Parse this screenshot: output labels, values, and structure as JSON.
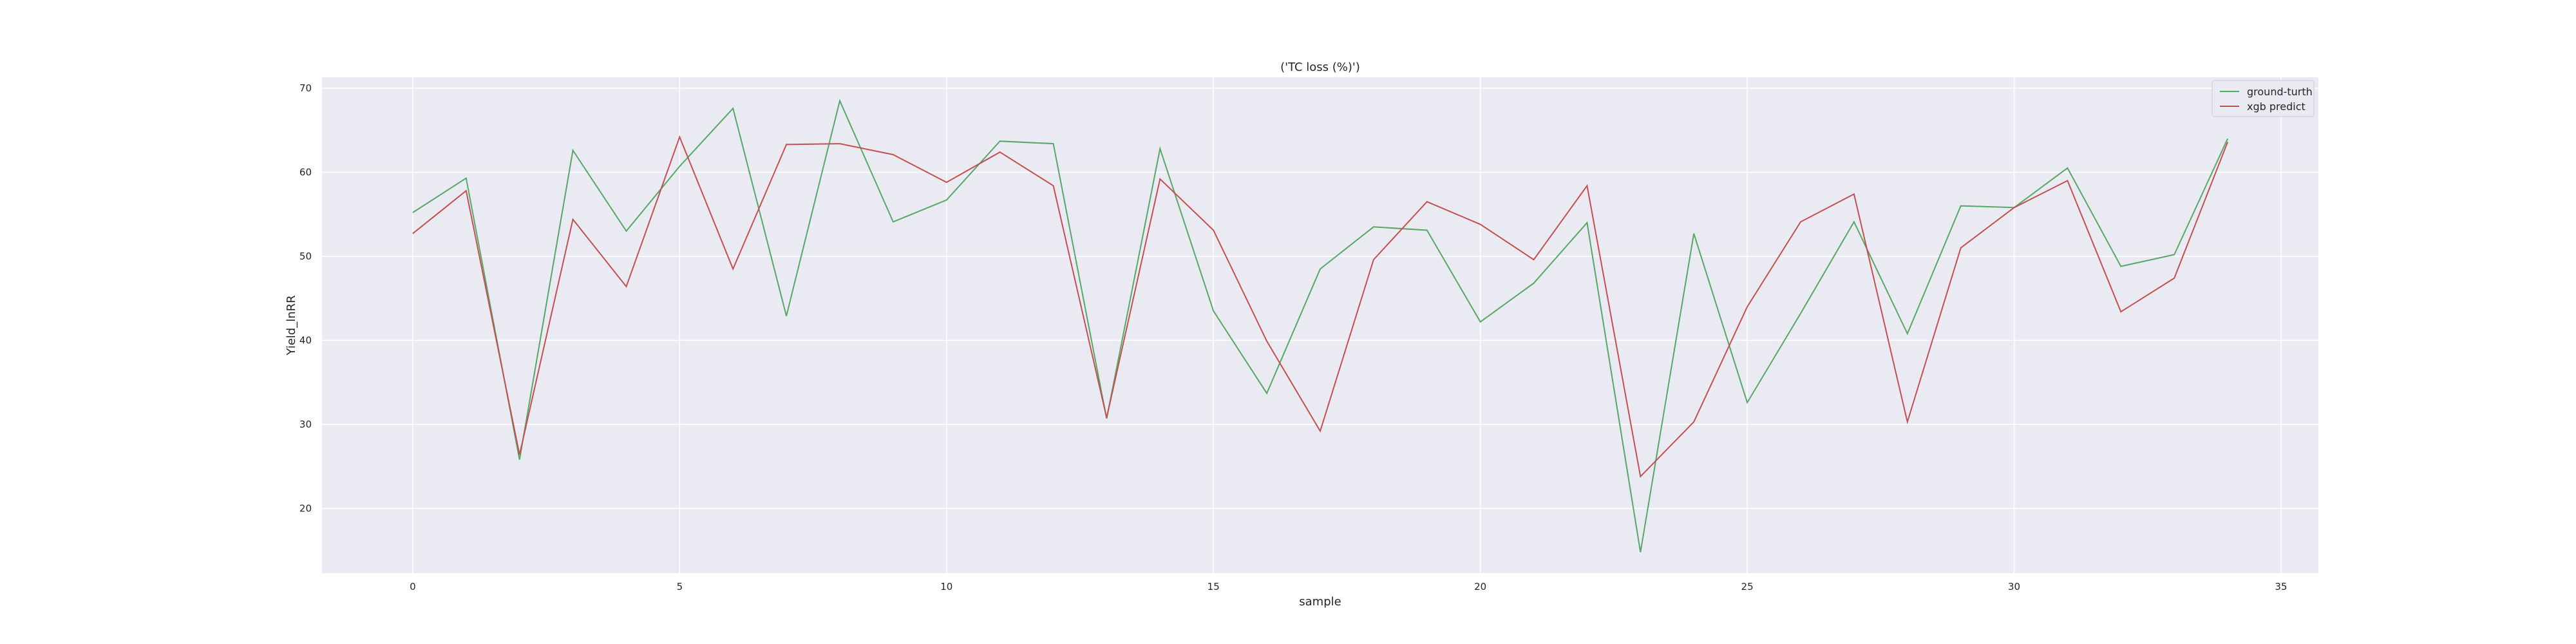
{
  "chart_data": {
    "type": "line",
    "title": "('TC loss (%)')",
    "xlabel": "sample",
    "ylabel": "Yield_lnRR",
    "xlim": [
      -1.7,
      35.7
    ],
    "ylim": [
      12.3,
      71.3
    ],
    "xticks": [
      0,
      5,
      10,
      15,
      20,
      25,
      30,
      35
    ],
    "yticks": [
      20,
      30,
      40,
      50,
      60,
      70
    ],
    "grid": true,
    "legend_position": "top-right",
    "x": [
      0,
      1,
      2,
      3,
      4,
      5,
      6,
      7,
      8,
      9,
      10,
      11,
      12,
      13,
      14,
      15,
      16,
      17,
      18,
      19,
      20,
      21,
      22,
      23,
      24,
      25,
      26,
      27,
      28,
      29,
      30,
      31,
      32,
      33,
      34
    ],
    "series": [
      {
        "name": "ground-turth",
        "color": "#55a868",
        "values": [
          55.2,
          59.3,
          25.8,
          62.6,
          53.0,
          60.7,
          67.6,
          42.9,
          68.5,
          54.1,
          56.7,
          63.7,
          63.4,
          30.7,
          62.8,
          43.5,
          33.7,
          48.5,
          53.5,
          53.1,
          42.2,
          46.8,
          54.0,
          14.8,
          52.7,
          32.6,
          43.2,
          54.1,
          40.8,
          56.0,
          55.8,
          60.5,
          48.8,
          50.2,
          64.0
        ]
      },
      {
        "name": "xgb predict",
        "color": "#c44e52",
        "values": [
          52.7,
          57.8,
          26.4,
          54.4,
          46.4,
          64.2,
          48.5,
          63.3,
          63.4,
          62.1,
          58.8,
          62.4,
          58.4,
          30.8,
          59.2,
          53.1,
          39.9,
          29.2,
          49.6,
          56.5,
          53.8,
          49.6,
          58.4,
          23.8,
          30.3,
          44.0,
          54.1,
          57.4,
          30.3,
          51.0,
          55.8,
          59.0,
          43.4,
          47.4,
          63.6
        ]
      }
    ]
  }
}
